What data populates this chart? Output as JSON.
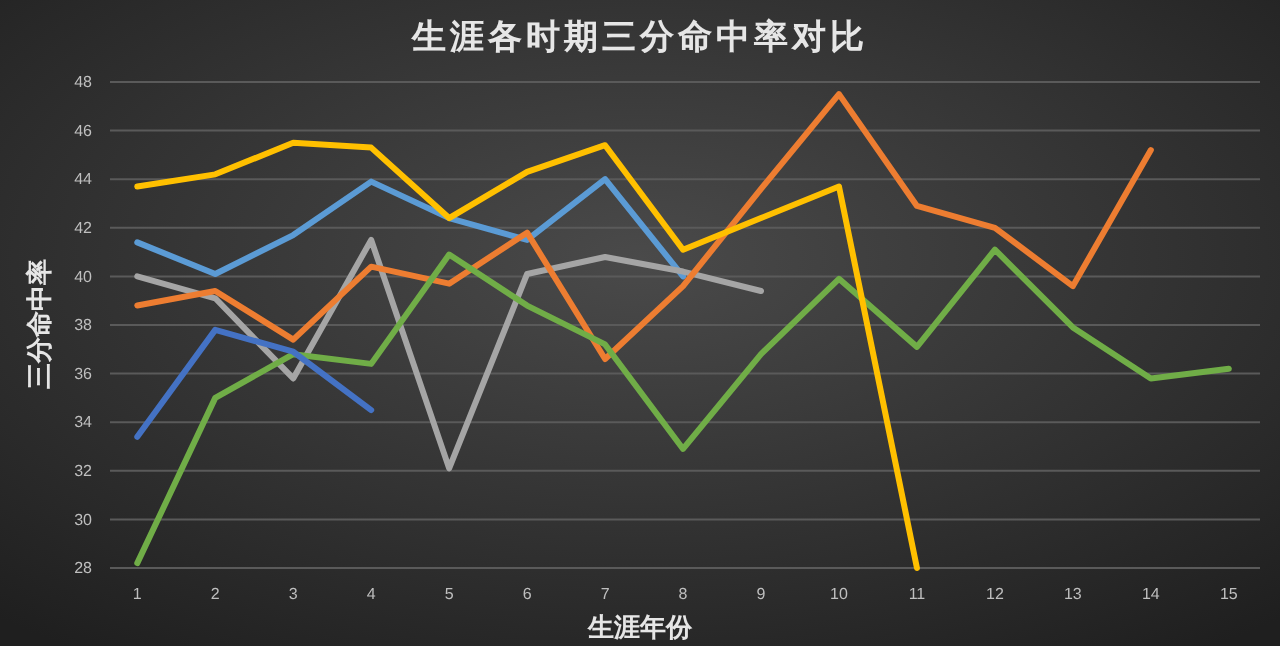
{
  "chart_data": {
    "type": "line",
    "title": "生涯各时期三分命中率对比",
    "xlabel": "生涯年份",
    "ylabel": "三分命中率",
    "x": [
      1,
      2,
      3,
      4,
      5,
      6,
      7,
      8,
      9,
      10,
      11,
      12,
      13,
      14,
      15
    ],
    "xlim": [
      0.65,
      15.4
    ],
    "xticks": [
      1,
      2,
      3,
      4,
      5,
      6,
      7,
      8,
      9,
      10,
      11,
      12,
      13,
      14,
      15
    ],
    "ylim": [
      28,
      48
    ],
    "yticks": [
      28,
      30,
      32,
      34,
      36,
      38,
      40,
      42,
      44,
      46,
      48
    ],
    "grid": "y",
    "marker": "none",
    "line_style": "solid",
    "series": [
      {
        "color": "#5b9bd5",
        "values": [
          41.4,
          40.1,
          41.7,
          43.9,
          42.4,
          41.5,
          44.0,
          40.0,
          null,
          null,
          null,
          null,
          null,
          null,
          null
        ]
      },
      {
        "color": "#a5a5a5",
        "values": [
          40.0,
          39.1,
          35.8,
          41.5,
          32.1,
          40.1,
          40.8,
          40.2,
          39.4,
          null,
          null,
          null,
          null,
          null,
          null
        ]
      },
      {
        "color": "#ed7d31",
        "values": [
          38.8,
          39.4,
          37.4,
          40.4,
          39.7,
          41.8,
          36.6,
          39.6,
          43.6,
          47.5,
          42.9,
          42.0,
          39.6,
          45.2,
          null
        ]
      },
      {
        "color": "#70ad47",
        "values": [
          28.2,
          35.0,
          36.8,
          36.4,
          40.9,
          38.8,
          37.2,
          32.9,
          36.8,
          39.9,
          37.1,
          41.1,
          37.9,
          35.8,
          36.2
        ]
      },
      {
        "color": "#4472c4",
        "values": [
          33.4,
          37.8,
          36.9,
          34.5,
          null,
          null,
          null,
          null,
          null,
          null,
          null,
          null,
          null,
          null,
          null
        ]
      },
      {
        "color": "#ffc000",
        "values": [
          43.7,
          44.2,
          45.5,
          45.3,
          42.4,
          44.3,
          45.4,
          41.1,
          42.4,
          43.7,
          28.0,
          null,
          null,
          null,
          null
        ]
      }
    ]
  }
}
